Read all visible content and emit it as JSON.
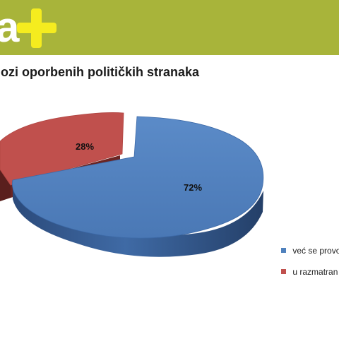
{
  "banner": {
    "letter": "a",
    "color": "#a8b43a",
    "plus_color": "#f5ec1f",
    "icon": "plus-icon"
  },
  "chart_data": {
    "type": "pie",
    "title": "lozi oporbenih političkih stranaka",
    "slices": [
      {
        "label": "već se provo",
        "value": 72,
        "data_label": "72%",
        "color": "#4f81bd"
      },
      {
        "label": "u razmatran",
        "value": 28,
        "data_label": "28%",
        "color": "#c0504d"
      }
    ],
    "legend_position": "right",
    "style": "3d-exploded"
  }
}
